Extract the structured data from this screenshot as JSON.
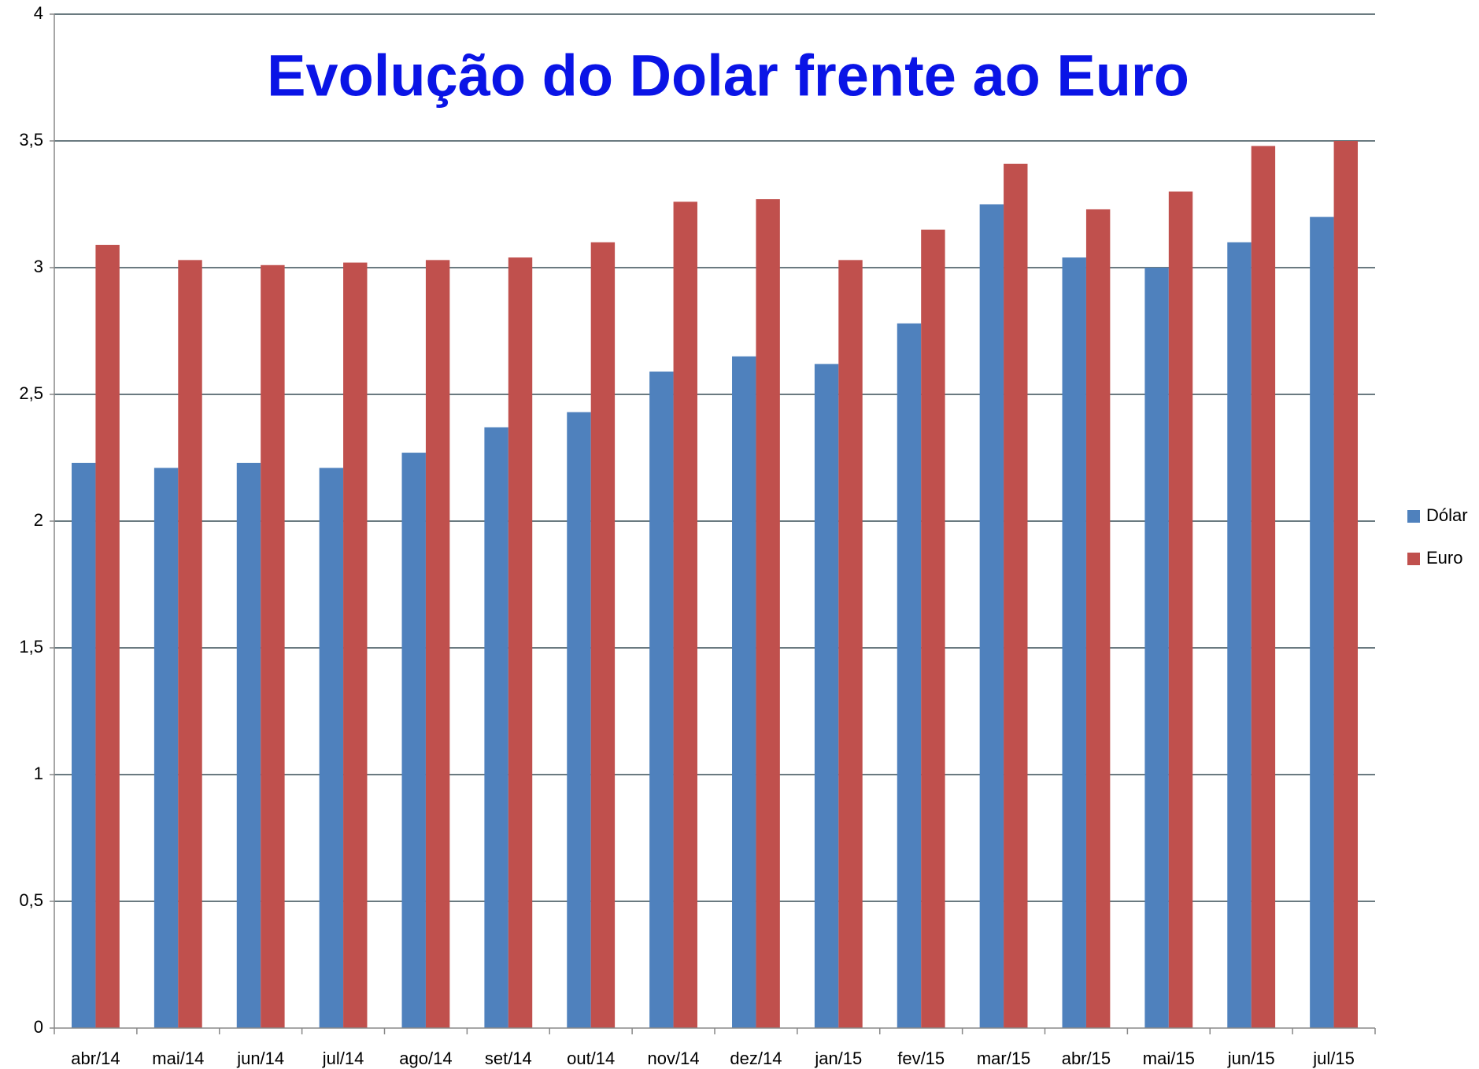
{
  "chart_data": {
    "type": "bar",
    "title": "Evolução do Dolar frente ao Euro",
    "categories": [
      "abr/14",
      "mai/14",
      "jun/14",
      "jul/14",
      "ago/14",
      "set/14",
      "out/14",
      "nov/14",
      "dez/14",
      "jan/15",
      "fev/15",
      "mar/15",
      "abr/15",
      "mai/15",
      "jun/15",
      "jul/15"
    ],
    "series": [
      {
        "name": "Dólar",
        "color": "#4f81bd",
        "values": [
          2.23,
          2.21,
          2.23,
          2.21,
          2.27,
          2.37,
          2.43,
          2.59,
          2.65,
          2.62,
          2.78,
          3.25,
          3.04,
          3.0,
          3.1,
          3.2
        ]
      },
      {
        "name": "Euro",
        "color": "#c0504d",
        "values": [
          3.09,
          3.03,
          3.01,
          3.02,
          3.03,
          3.04,
          3.1,
          3.26,
          3.27,
          3.03,
          3.15,
          3.41,
          3.23,
          3.3,
          3.48,
          3.5
        ]
      }
    ],
    "ylim": [
      0,
      4
    ],
    "yticks": [
      0,
      {
        "value": 0.5,
        "label": "0,5"
      },
      1,
      {
        "value": 1.5,
        "label": "1,5"
      },
      2,
      {
        "value": 2.5,
        "label": "2,5"
      },
      3,
      {
        "value": 3.5,
        "label": "3,5"
      },
      4
    ],
    "grid": true,
    "legend": "right"
  }
}
